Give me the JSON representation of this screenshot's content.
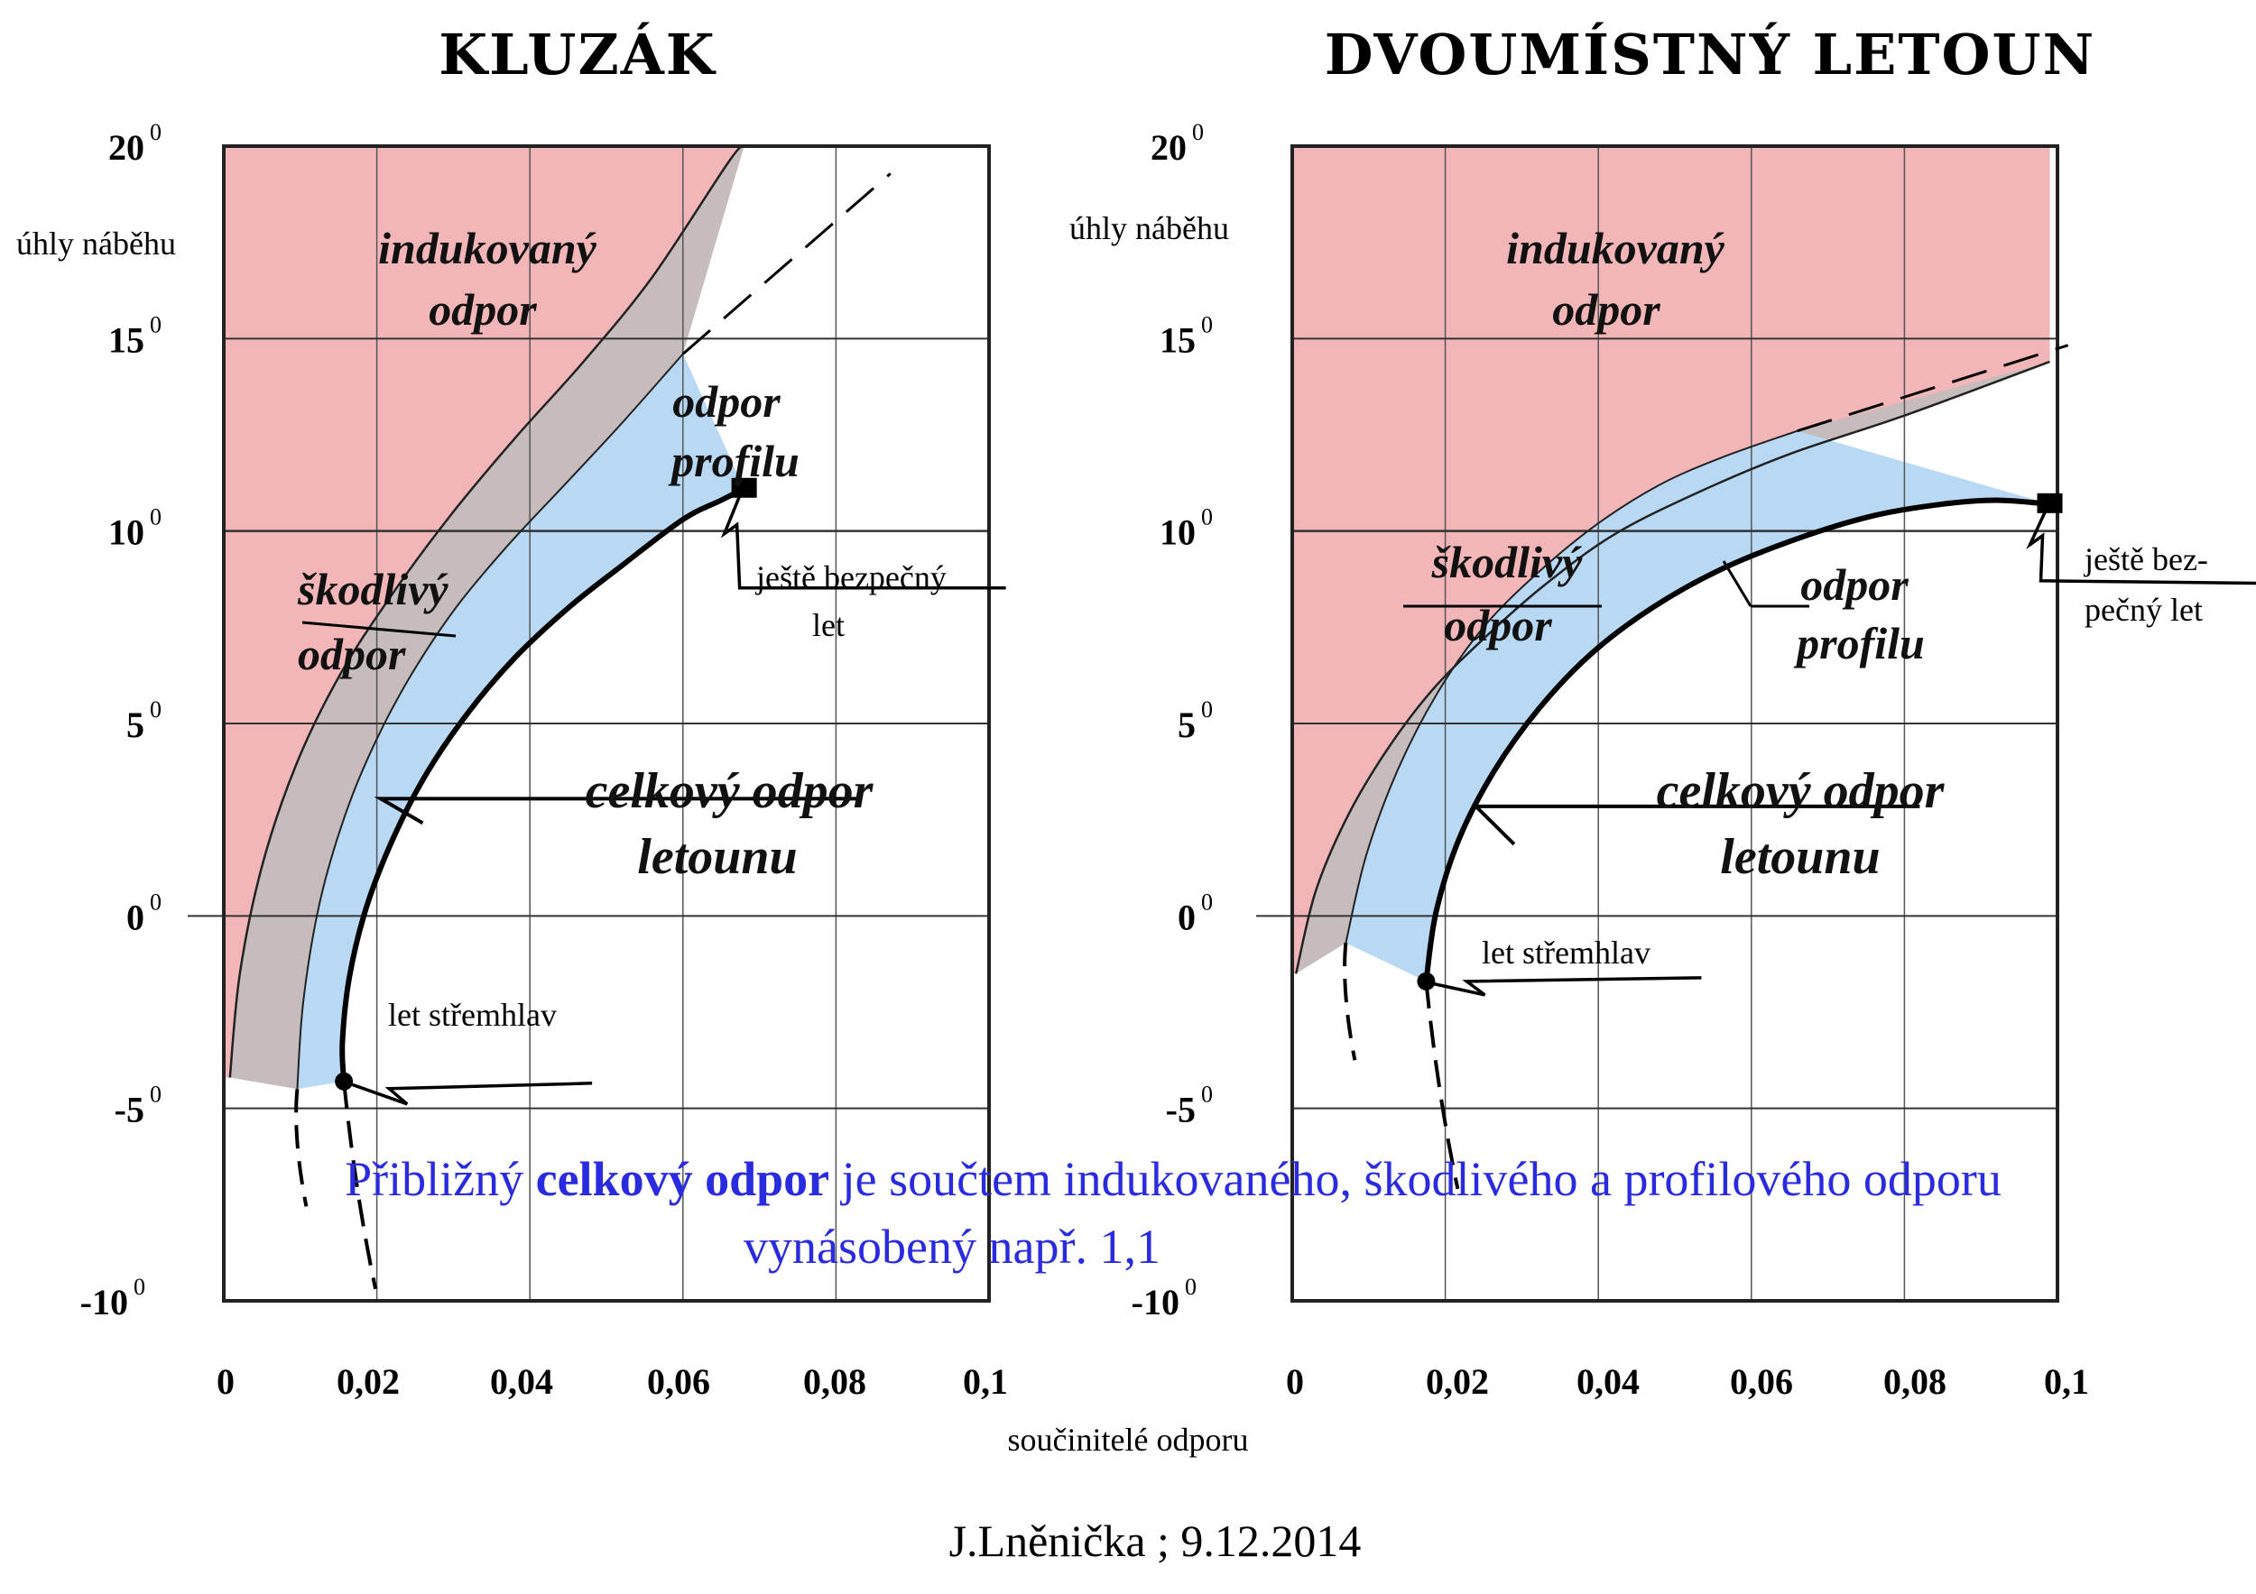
{
  "chart_data": [
    {
      "type": "area",
      "title": "KLUZÁK",
      "ylabel": "úhly náběhu",
      "xlim": [
        0,
        0.1
      ],
      "ylim": [
        -10,
        20
      ],
      "x_ticks": [
        "0",
        "0,02",
        "0,04",
        "0,06",
        "0,08",
        "0,1"
      ],
      "y_ticks": [
        "20",
        "15",
        "10",
        "5",
        "0",
        "-5",
        "-10"
      ],
      "degree_mark": "0",
      "grid": true,
      "regions": [
        {
          "name": "indukovaný odpor",
          "color": "#f2b6b8"
        },
        {
          "name": "škodlivý odpor",
          "color": "#c6bcbc"
        },
        {
          "name": "odpor profilu",
          "color": "#b8d8f4"
        }
      ],
      "region_labels": {
        "induced": [
          "indukovaný",
          "odpor"
        ],
        "parasite": [
          "škodlivý",
          "odpor"
        ],
        "profile": [
          "odpor",
          "profilu"
        ],
        "total": [
          "celkový odpor",
          "letounu"
        ]
      },
      "series": [
        {
          "name": "celkový odpor letounu",
          "x": [
            0.0157,
            0.0155,
            0.0164,
            0.0186,
            0.0221,
            0.0265,
            0.032,
            0.038,
            0.045,
            0.052,
            0.06,
            0.065,
            0.068
          ],
          "y": [
            -4.3,
            -3.3,
            -1.6,
            0.2,
            2.0,
            3.7,
            5.3,
            6.7,
            8.0,
            9.1,
            10.3,
            10.8,
            11.1
          ]
        },
        {
          "name": "hranice škodlivého odporu",
          "x": [
            0.0096,
            0.0104,
            0.0126,
            0.016,
            0.02,
            0.0246,
            0.0303,
            0.037,
            0.045,
            0.052,
            0.06
          ],
          "y": [
            -4.5,
            -2.2,
            0.4,
            2.7,
            4.6,
            6.3,
            8.0,
            9.6,
            11.3,
            12.8,
            14.6
          ]
        },
        {
          "name": "hranice indukovaného odporu",
          "x": [
            0.0008,
            0.0021,
            0.005,
            0.0094,
            0.015,
            0.0218,
            0.0296,
            0.038,
            0.047,
            0.056,
            0.066,
            0.068
          ],
          "y": [
            -4.2,
            -1.5,
            1.3,
            3.9,
            6.2,
            8.3,
            10.4,
            12.4,
            14.4,
            16.6,
            19.6,
            20.0
          ]
        }
      ],
      "annotations": [
        {
          "text": "ještě bezpečný",
          "text2": "let",
          "at": {
            "x": 0.068,
            "y": 11.0
          }
        },
        {
          "text": "let střemhlav",
          "at": {
            "x": 0.0155,
            "y": -3.3
          }
        }
      ]
    },
    {
      "type": "area",
      "title": "DVOUMÍSTNÝ LETOUN",
      "ylabel": "úhly náběhu",
      "xlim": [
        0,
        0.1
      ],
      "ylim": [
        -10,
        20
      ],
      "x_ticks": [
        "0",
        "0,02",
        "0,04",
        "0,06",
        "0,08",
        "0,1"
      ],
      "y_ticks": [
        "20",
        "15",
        "10",
        "5",
        "0",
        "-5",
        "-10"
      ],
      "degree_mark": "0",
      "grid": true,
      "regions": [
        {
          "name": "indukovaný odpor",
          "color": "#f2b6b8"
        },
        {
          "name": "škodlivý odpor",
          "color": "#c6bcbc"
        },
        {
          "name": "odpor profilu",
          "color": "#b8d8f4"
        }
      ],
      "region_labels": {
        "induced": [
          "indukovaný",
          "odpor"
        ],
        "parasite": [
          "škodlivý",
          "odpor"
        ],
        "profile": [
          "odpor",
          "profilu"
        ],
        "total": [
          "celkový odpor",
          "letounu"
        ]
      },
      "series": [
        {
          "name": "celkový odpor letounu",
          "x": [
            0.0175,
            0.0188,
            0.0218,
            0.0265,
            0.0323,
            0.039,
            0.047,
            0.056,
            0.066,
            0.076,
            0.085,
            0.092,
            0.099
          ],
          "y": [
            -1.7,
            0.1,
            2.0,
            3.8,
            5.4,
            6.8,
            8.0,
            9.0,
            9.8,
            10.4,
            10.7,
            10.8,
            10.7
          ]
        },
        {
          "name": "hranice škodlivého odporu",
          "x": [
            0.007,
            0.0097,
            0.0138,
            0.019,
            0.025,
            0.032,
            0.04,
            0.048,
            0.056,
            0.066
          ],
          "y": [
            -0.7,
            1.6,
            3.8,
            5.8,
            7.5,
            8.9,
            10.2,
            11.2,
            11.9,
            12.6
          ]
        },
        {
          "name": "hranice indukovaného odporu",
          "x": [
            0.0005,
            0.003,
            0.007,
            0.012,
            0.018,
            0.025,
            0.033,
            0.042,
            0.053,
            0.065,
            0.08,
            0.099
          ],
          "y": [
            -1.5,
            0.6,
            2.5,
            4.2,
            5.8,
            7.2,
            8.6,
            9.9,
            11.0,
            12.0,
            13.0,
            14.4
          ]
        }
      ],
      "annotations": [
        {
          "text": "ještě bez-",
          "text2": "pečný let",
          "at": {
            "x": 0.093,
            "y": 10.8
          }
        },
        {
          "text": "let střemhlav",
          "at": {
            "x": 0.0175,
            "y": -1.7
          }
        }
      ]
    }
  ],
  "xlabel": "součinitelé odporu",
  "note": {
    "line1_a": "Přibližný ",
    "line1_b": "celkový odpor",
    "line1_c": "  je součtem indukovaného, škodlivého a profilového odporu",
    "line2": "vynásobený např. 1,1"
  },
  "credit": "J.Lněnička ; 9.12.2014"
}
